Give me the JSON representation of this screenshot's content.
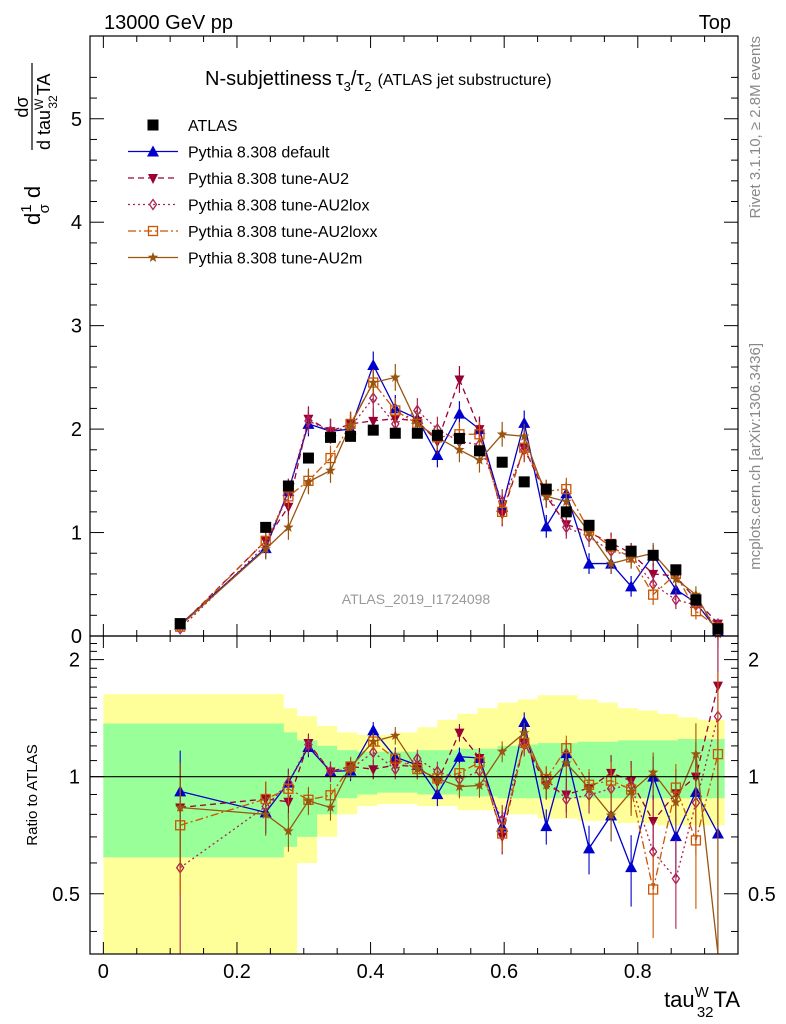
{
  "header": {
    "left": "13000 GeV pp",
    "right": "Top",
    "side_top": "Rivet 3.1.10, ≥ 2.8M events",
    "side_bottom": "mcplots.cern.ch [arXiv:1306.3436]",
    "analysis": "ATLAS_2019_I1724098"
  },
  "chart_data": {
    "type": "line",
    "title_main": "N-subjettiness",
    "title_tau_a": "τ",
    "title_tau_a_sub": "3",
    "title_slash": "/",
    "title_tau_b": "τ",
    "title_tau_b_sub": "2",
    "title_suffix": "(ATLAS jet substructure)",
    "xlabel": {
      "pre": "tau",
      "sup": "W",
      "sub": "32",
      "post": "TA"
    },
    "ylabel": {
      "p1": "d",
      "frac_num": "1",
      "frac_den": "σ",
      "p2": "d",
      "num": "dσ",
      "den_pre": "d tau",
      "den_sup": "W",
      "den_sub": "32",
      "den_post": "TA"
    },
    "ratio_ylabel": "Ratio to ATLAS",
    "xlim": [
      -0.02,
      0.95
    ],
    "ylim": [
      0,
      5.8
    ],
    "ratio_ylim": [
      0.35,
      2.3
    ],
    "x_ticks": [
      0,
      0.2,
      0.4,
      0.6,
      0.8
    ],
    "x_tick_labels": [
      "0",
      "0.2",
      "0.4",
      "0.6",
      "0.8"
    ],
    "y_ticks": [
      0,
      1,
      2,
      3,
      4,
      5
    ],
    "y_tick_labels": [
      "0",
      "1",
      "2",
      "3",
      "4",
      "5"
    ],
    "ratio_ticks": [
      0.5,
      1,
      2
    ],
    "ratio_tick_labels": [
      "0.5",
      "1",
      "2"
    ],
    "x": [
      0.115,
      0.243,
      0.277,
      0.307,
      0.34,
      0.37,
      0.404,
      0.437,
      0.47,
      0.5,
      0.533,
      0.563,
      0.597,
      0.63,
      0.663,
      0.693,
      0.727,
      0.76,
      0.79,
      0.823,
      0.857,
      0.887,
      0.92
    ],
    "bands": {
      "edges": [
        0,
        0.2,
        0.27,
        0.29,
        0.32,
        0.35,
        0.38,
        0.41,
        0.44,
        0.47,
        0.5,
        0.53,
        0.56,
        0.59,
        0.62,
        0.65,
        0.68,
        0.71,
        0.74,
        0.77,
        0.8,
        0.83,
        0.86,
        0.89,
        0.93
      ],
      "green_lo": [
        0.62,
        0.62,
        0.66,
        0.7,
        0.8,
        0.88,
        0.9,
        0.91,
        0.91,
        0.9,
        0.9,
        0.89,
        0.89,
        0.88,
        0.88,
        0.88,
        0.88,
        0.88,
        0.88,
        0.88,
        0.88,
        0.88,
        0.88,
        0.88
      ],
      "green_hi": [
        1.37,
        1.37,
        1.3,
        1.24,
        1.2,
        1.17,
        1.16,
        1.16,
        1.16,
        1.17,
        1.17,
        1.18,
        1.18,
        1.2,
        1.21,
        1.22,
        1.22,
        1.23,
        1.23,
        1.24,
        1.24,
        1.24,
        1.25,
        1.25
      ],
      "yellow_lo": [
        0.35,
        0.35,
        0.35,
        0.6,
        0.7,
        0.8,
        0.84,
        0.85,
        0.85,
        0.84,
        0.84,
        0.82,
        0.82,
        0.8,
        0.8,
        0.78,
        0.78,
        0.77,
        0.77,
        0.76,
        0.76,
        0.75,
        0.75,
        0.75
      ],
      "yellow_hi": [
        1.63,
        1.63,
        1.5,
        1.43,
        1.35,
        1.3,
        1.28,
        1.28,
        1.3,
        1.34,
        1.4,
        1.45,
        1.5,
        1.55,
        1.58,
        1.62,
        1.62,
        1.58,
        1.55,
        1.5,
        1.48,
        1.45,
        1.42,
        1.4
      ]
    },
    "series": [
      {
        "name": "ATLAS",
        "color": "#000000",
        "marker": "square-filled",
        "line": "none",
        "values": [
          0.12,
          1.05,
          1.45,
          1.72,
          1.92,
          1.93,
          1.99,
          1.96,
          1.96,
          1.94,
          1.91,
          1.79,
          1.68,
          1.49,
          1.42,
          1.2,
          1.07,
          0.88,
          0.82,
          0.78,
          0.64,
          0.35,
          0.07
        ]
      },
      {
        "name": "Pythia 8.308 default",
        "color": "#0000cc",
        "marker": "triangle-up-filled",
        "line": "solid",
        "values": [
          0.11,
          0.85,
          1.4,
          2.05,
          1.98,
          2.0,
          2.62,
          2.2,
          2.1,
          1.75,
          2.15,
          2.0,
          1.25,
          2.06,
          1.06,
          1.38,
          0.7,
          0.7,
          0.48,
          0.78,
          0.45,
          0.32,
          0.05
        ],
        "err": [
          0.03,
          0.1,
          0.12,
          0.12,
          0.12,
          0.12,
          0.13,
          0.13,
          0.12,
          0.12,
          0.12,
          0.12,
          0.12,
          0.12,
          0.11,
          0.11,
          0.1,
          0.1,
          0.1,
          0.1,
          0.09,
          0.08,
          0.05
        ]
      },
      {
        "name": "Pythia 8.308 tune-AU2",
        "color": "#990033",
        "marker": "triangle-down-filled",
        "line": "dashed",
        "values": [
          0.1,
          0.92,
          1.25,
          2.1,
          1.98,
          2.05,
          2.08,
          2.1,
          2.08,
          1.88,
          2.48,
          2.0,
          1.18,
          1.82,
          1.35,
          1.08,
          1.0,
          0.9,
          0.8,
          0.6,
          0.58,
          0.35,
          0.12
        ],
        "err": [
          0.03,
          0.1,
          0.12,
          0.12,
          0.12,
          0.12,
          0.12,
          0.12,
          0.12,
          0.12,
          0.13,
          0.12,
          0.12,
          0.12,
          0.11,
          0.11,
          0.1,
          0.1,
          0.1,
          0.1,
          0.09,
          0.08,
          0.05
        ]
      },
      {
        "name": "Pythia 8.308 tune-AU2lox",
        "color": "#aa2255",
        "marker": "diamond-open",
        "line": "dotted",
        "values": [
          0.07,
          0.88,
          1.4,
          2.08,
          1.98,
          2.02,
          2.3,
          2.05,
          2.18,
          2.0,
          1.88,
          1.85,
          1.3,
          1.8,
          1.4,
          1.05,
          0.96,
          0.82,
          0.78,
          0.5,
          0.35,
          0.3,
          0.1
        ],
        "err": [
          0.03,
          0.1,
          0.12,
          0.12,
          0.12,
          0.12,
          0.12,
          0.12,
          0.12,
          0.12,
          0.12,
          0.12,
          0.12,
          0.12,
          0.11,
          0.11,
          0.1,
          0.1,
          0.1,
          0.1,
          0.09,
          0.08,
          0.05
        ]
      },
      {
        "name": "Pythia 8.308 tune-AU2loxx",
        "color": "#cc5500",
        "marker": "square-open",
        "line": "dashdot",
        "values": [
          0.09,
          0.92,
          1.35,
          1.5,
          1.72,
          2.05,
          2.45,
          2.18,
          2.05,
          1.92,
          1.95,
          1.95,
          1.2,
          1.82,
          1.4,
          1.42,
          1.02,
          0.86,
          0.76,
          0.4,
          0.6,
          0.24,
          0.08
        ],
        "err": [
          0.03,
          0.1,
          0.12,
          0.12,
          0.12,
          0.12,
          0.12,
          0.12,
          0.12,
          0.12,
          0.12,
          0.12,
          0.12,
          0.12,
          0.11,
          0.11,
          0.1,
          0.1,
          0.1,
          0.1,
          0.09,
          0.08,
          0.05
        ]
      },
      {
        "name": "Pythia 8.308 tune-AU2m",
        "color": "#995511",
        "marker": "star",
        "line": "solid",
        "values": [
          0.1,
          0.84,
          1.05,
          1.49,
          1.6,
          2.04,
          2.45,
          2.5,
          2.05,
          1.92,
          1.8,
          1.7,
          1.95,
          1.93,
          1.35,
          1.3,
          1.0,
          0.7,
          0.75,
          0.8,
          0.55,
          0.4,
          0.02
        ],
        "err": [
          0.03,
          0.1,
          0.12,
          0.12,
          0.12,
          0.12,
          0.13,
          0.13,
          0.12,
          0.12,
          0.12,
          0.12,
          0.12,
          0.12,
          0.11,
          0.11,
          0.1,
          0.1,
          0.1,
          0.1,
          0.09,
          0.08,
          0.05
        ]
      }
    ]
  }
}
